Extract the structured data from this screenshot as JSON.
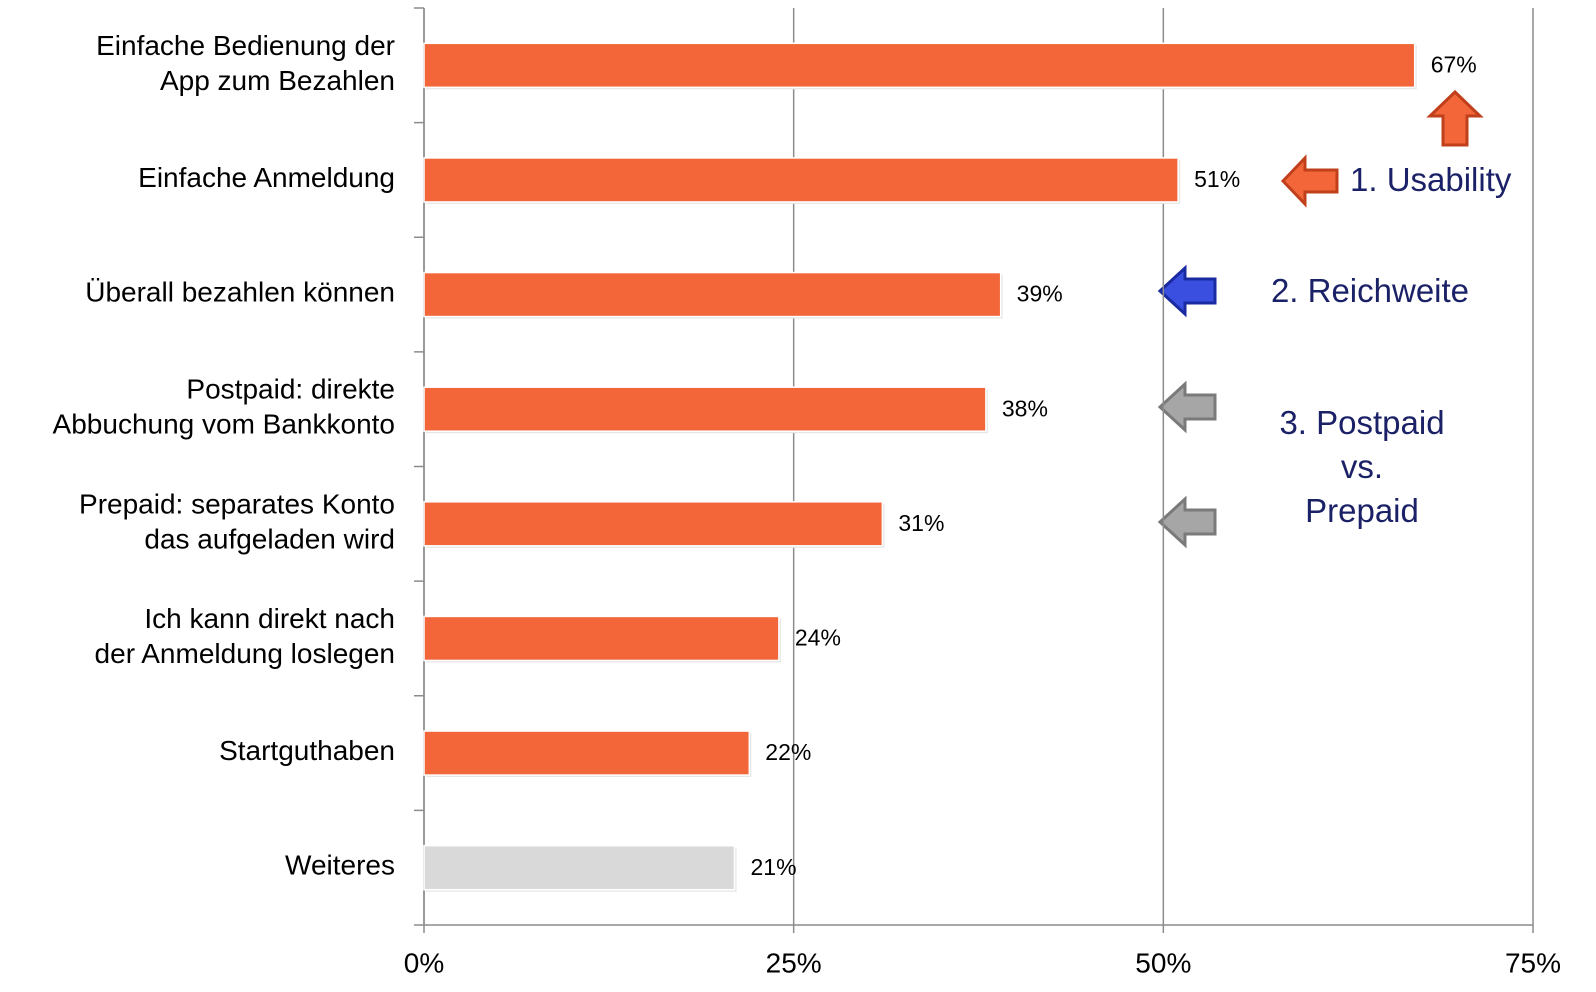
{
  "chart_data": {
    "type": "barh",
    "categories": [
      [
        "Einfache Bedienung der",
        "App zum Bezahlen"
      ],
      [
        "Einfache Anmeldung"
      ],
      [
        "Überall bezahlen können"
      ],
      [
        "Postpaid: direkte",
        "Abbuchung vom Bankkonto"
      ],
      [
        "Prepaid: separates Konto",
        "das aufgeladen wird"
      ],
      [
        "Ich kann direkt nach",
        "der Anmeldung loslegen"
      ],
      [
        "Startguthaben"
      ],
      [
        "Weiteres"
      ]
    ],
    "values": [
      67,
      51,
      39,
      38,
      31,
      24,
      22,
      21
    ],
    "value_labels": [
      "67%",
      "51%",
      "39%",
      "38%",
      "31%",
      "24%",
      "22%",
      "21%"
    ],
    "colors": [
      "#f26639",
      "#f26639",
      "#f26639",
      "#f26639",
      "#f26639",
      "#f26639",
      "#f26639",
      "#d9d9d9"
    ],
    "xlim": [
      0,
      75
    ],
    "xticks": [
      {
        "value": 0,
        "label": "0%"
      },
      {
        "value": 25,
        "label": "25%"
      },
      {
        "value": 50,
        "label": "50%"
      },
      {
        "value": 75,
        "label": "75%"
      }
    ],
    "grid": true,
    "annotations": [
      [
        "1. Usability"
      ],
      [
        "2. Reichweite"
      ],
      [
        "3. Postpaid",
        "vs.",
        "Prepaid"
      ]
    ]
  }
}
